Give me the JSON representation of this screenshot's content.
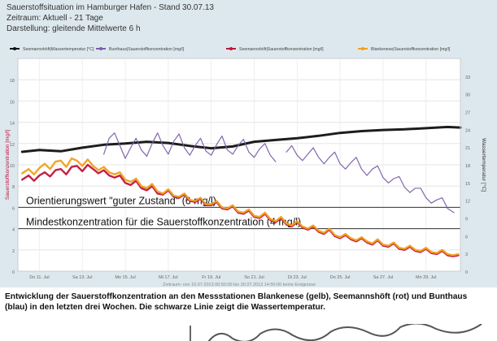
{
  "header": {
    "line1": "Sauerstoffsituation im Hamburger Hafen - Stand 30.07.13",
    "line2": "Zeitraum: Aktuell - 21 Tage",
    "line3": "Darstellung: gleitende Mittelwerte 6 h"
  },
  "caption": {
    "part1": "Entwicklung der Sauerstoffkonzentration an den ",
    "bold": "Messstationen Blankenese",
    "part2": " (gelb), Seemannshöft (rot) und Bunthaus (blau) in den letzten drei Wochen. Die schwarze Linie zeigt die Wassertemperatur."
  },
  "chart_data": {
    "type": "line",
    "legend_position": "top",
    "ylabel": "Sauerstoffkonzentration [mg/l]",
    "y2label": "Wassertemperatur [°C]",
    "xlabel": "Zeitraum: von 10.07.2013 00:50:00 bis 30.07.2013 14:50:00 keine Ereignisse",
    "ylim": [
      0,
      20
    ],
    "y2lim": [
      0,
      36
    ],
    "yticks": [
      0,
      2,
      4,
      6,
      8,
      10,
      12,
      14,
      16,
      18
    ],
    "y2ticks": [
      0,
      3,
      6,
      9,
      12,
      15,
      18,
      21,
      24,
      27,
      30,
      33
    ],
    "xlim": [
      10,
      30.6
    ],
    "xticks": [
      11,
      13,
      15,
      17,
      19,
      21,
      23,
      25,
      27,
      29
    ],
    "xticklabels": [
      "Do 11. Jul",
      "Sa 13. Jul",
      "Mo 15. Jul",
      "Mi 17. Jul",
      "Fr 19. Jul",
      "So 21. Jul",
      "Di 23. Jul",
      "Do 25. Jul",
      "Sa 27. Jul",
      "Mo 29. Jul"
    ],
    "reference_lines": [
      {
        "y": 6,
        "label": "Orientierungswert \"guter Zustand\" (6 mg/l)"
      },
      {
        "y": 4,
        "label": "Mindestkonzentration für die Sauerstoffkonzentration (4 mg/l)"
      }
    ],
    "series": [
      {
        "name": "Seemannshöft|Wassertemperatur [°C]",
        "color": "#111111",
        "axis": "right",
        "x": [
          10.2,
          11,
          12,
          13,
          14,
          15,
          16,
          17,
          18,
          19,
          20,
          21,
          22,
          23,
          24,
          25,
          26,
          27,
          28,
          29,
          30,
          30.6
        ],
        "y": [
          20.2,
          20.5,
          20.3,
          20.9,
          21.4,
          21.6,
          21.9,
          21.7,
          21.2,
          20.8,
          21.1,
          21.9,
          22.2,
          22.5,
          22.9,
          23.4,
          23.7,
          23.9,
          24.0,
          24.2,
          24.4,
          24.3
        ]
      },
      {
        "name": "Bunthaus|Sauerstoffkonzentration [mg/l]",
        "color": "#7b5ea7",
        "axis": "left",
        "x": [
          14.0,
          14.25,
          14.5,
          14.75,
          15.0,
          15.25,
          15.5,
          15.75,
          16.0,
          16.25,
          16.5,
          16.75,
          17.0,
          17.25,
          17.5,
          17.75,
          18.0,
          18.25,
          18.5,
          18.75,
          19.0,
          19.25,
          19.5,
          19.75,
          20.0,
          20.25,
          20.5,
          20.75,
          21.0,
          21.25,
          21.5,
          21.75,
          22.0,
          null,
          22.5,
          22.75,
          23.0,
          23.25,
          23.5,
          23.75,
          24.0,
          24.25,
          24.5,
          24.75,
          25.0,
          25.25,
          25.5,
          25.75,
          26.0,
          26.25,
          26.5,
          26.75,
          27.0,
          27.25,
          27.5,
          27.75,
          28.0,
          28.25,
          28.5,
          28.75,
          29.0,
          29.25,
          29.5,
          29.75,
          30.0,
          30.3
        ],
        "y": [
          11.0,
          12.5,
          13.0,
          11.8,
          10.6,
          11.6,
          12.5,
          11.4,
          10.8,
          12.0,
          13.0,
          11.8,
          11.0,
          12.2,
          12.9,
          11.6,
          10.9,
          11.8,
          12.5,
          11.3,
          10.9,
          11.9,
          12.7,
          11.4,
          11.0,
          11.8,
          12.4,
          11.2,
          10.7,
          11.5,
          12.0,
          10.9,
          10.3,
          null,
          11.2,
          11.8,
          10.9,
          10.4,
          11.0,
          11.6,
          10.7,
          10.1,
          10.7,
          11.2,
          10.1,
          9.6,
          10.2,
          10.7,
          9.6,
          9.0,
          9.6,
          9.9,
          8.8,
          8.3,
          8.7,
          8.9,
          7.9,
          7.4,
          7.8,
          7.8,
          6.9,
          6.4,
          6.7,
          6.9,
          5.9,
          5.5
        ]
      },
      {
        "name": "Seemannshöft|Sauerstoffkonzentration [mg/l]",
        "color": "#c0143c",
        "axis": "left",
        "x": [
          10.2,
          10.5,
          10.75,
          11.0,
          11.25,
          11.5,
          11.75,
          12.0,
          12.25,
          12.5,
          12.75,
          13.0,
          13.25,
          13.5,
          13.75,
          14.0,
          14.25,
          14.5,
          14.75,
          15.0,
          15.25,
          15.5,
          15.75,
          16.0,
          16.25,
          16.5,
          16.75,
          17.0,
          17.25,
          17.5,
          17.75,
          18.0,
          18.25,
          18.5,
          18.75,
          19.0,
          19.25,
          19.5,
          19.75,
          20.0,
          20.25,
          20.5,
          20.75,
          21.0,
          21.25,
          21.5,
          21.75,
          22.0,
          22.25,
          22.5,
          22.75,
          23.0,
          23.25,
          23.5,
          23.75,
          24.0,
          24.25,
          24.5,
          24.75,
          25.0,
          25.25,
          25.5,
          25.75,
          26.0,
          26.25,
          26.5,
          26.75,
          27.0,
          27.25,
          27.5,
          27.75,
          28.0,
          28.25,
          28.5,
          28.75,
          29.0,
          29.25,
          29.5,
          29.75,
          30.0,
          30.25,
          30.5
        ],
        "y": [
          8.6,
          9.0,
          8.5,
          9.0,
          9.3,
          8.9,
          9.5,
          9.6,
          9.1,
          9.8,
          9.9,
          9.4,
          10.0,
          9.6,
          9.2,
          9.5,
          9.0,
          8.8,
          9.0,
          8.3,
          8.1,
          8.5,
          7.8,
          7.6,
          8.0,
          7.3,
          7.2,
          7.6,
          7.0,
          6.9,
          7.2,
          6.6,
          6.5,
          6.8,
          6.2,
          6.2,
          6.5,
          5.9,
          5.8,
          6.1,
          5.5,
          5.4,
          5.7,
          5.1,
          5.0,
          5.4,
          4.8,
          4.6,
          5.0,
          4.4,
          4.2,
          4.6,
          4.1,
          3.9,
          4.2,
          3.7,
          3.5,
          3.9,
          3.3,
          3.1,
          3.4,
          3.0,
          2.8,
          3.1,
          2.7,
          2.5,
          2.9,
          2.4,
          2.3,
          2.6,
          2.1,
          2.0,
          2.3,
          1.9,
          1.8,
          2.1,
          1.7,
          1.6,
          1.9,
          1.5,
          1.4,
          1.5
        ]
      },
      {
        "name": "Blankenese|Sauerstoffkonzentration [mg/l]",
        "color": "#f0a020",
        "axis": "left",
        "x": [
          10.2,
          10.5,
          10.75,
          11.0,
          11.25,
          11.5,
          11.75,
          12.0,
          12.25,
          12.5,
          12.75,
          13.0,
          13.25,
          13.5,
          13.75,
          14.0,
          14.25,
          14.5,
          14.75,
          15.0,
          15.25,
          15.5,
          15.75,
          16.0,
          16.25,
          16.5,
          16.75,
          17.0,
          17.25,
          17.5,
          17.75,
          18.0,
          18.25,
          18.5,
          18.75,
          19.0,
          19.25,
          19.5,
          19.75,
          20.0,
          20.25,
          20.5,
          20.75,
          21.0,
          21.25,
          21.5,
          21.75,
          22.0,
          22.25,
          22.5,
          22.75,
          23.0,
          23.25,
          23.5,
          23.75,
          24.0,
          24.25,
          24.5,
          24.75,
          25.0,
          25.25,
          25.5,
          25.75,
          26.0,
          26.25,
          26.5,
          26.75,
          27.0,
          27.25,
          27.5,
          27.75,
          28.0,
          28.25,
          28.5,
          28.75,
          29.0,
          29.25,
          29.5,
          29.75,
          30.0,
          30.25,
          30.5
        ],
        "y": [
          9.2,
          9.6,
          9.1,
          9.7,
          10.1,
          9.6,
          10.3,
          10.4,
          9.8,
          10.6,
          10.4,
          9.9,
          10.5,
          9.9,
          9.5,
          9.8,
          9.3,
          9.1,
          9.3,
          8.6,
          8.4,
          8.7,
          8.0,
          7.8,
          8.2,
          7.5,
          7.3,
          7.7,
          7.1,
          7.0,
          7.3,
          6.7,
          6.6,
          6.9,
          6.3,
          6.3,
          6.6,
          6.0,
          5.9,
          6.2,
          5.6,
          5.5,
          5.8,
          5.2,
          5.1,
          5.5,
          4.9,
          4.7,
          5.1,
          4.5,
          4.3,
          4.7,
          4.2,
          4.0,
          4.3,
          3.8,
          3.6,
          4.0,
          3.4,
          3.2,
          3.5,
          3.1,
          2.9,
          3.2,
          2.8,
          2.6,
          3.0,
          2.5,
          2.4,
          2.7,
          2.2,
          2.1,
          2.4,
          2.0,
          1.9,
          2.2,
          1.8,
          1.7,
          2.0,
          1.6,
          1.5,
          1.6
        ]
      }
    ]
  }
}
